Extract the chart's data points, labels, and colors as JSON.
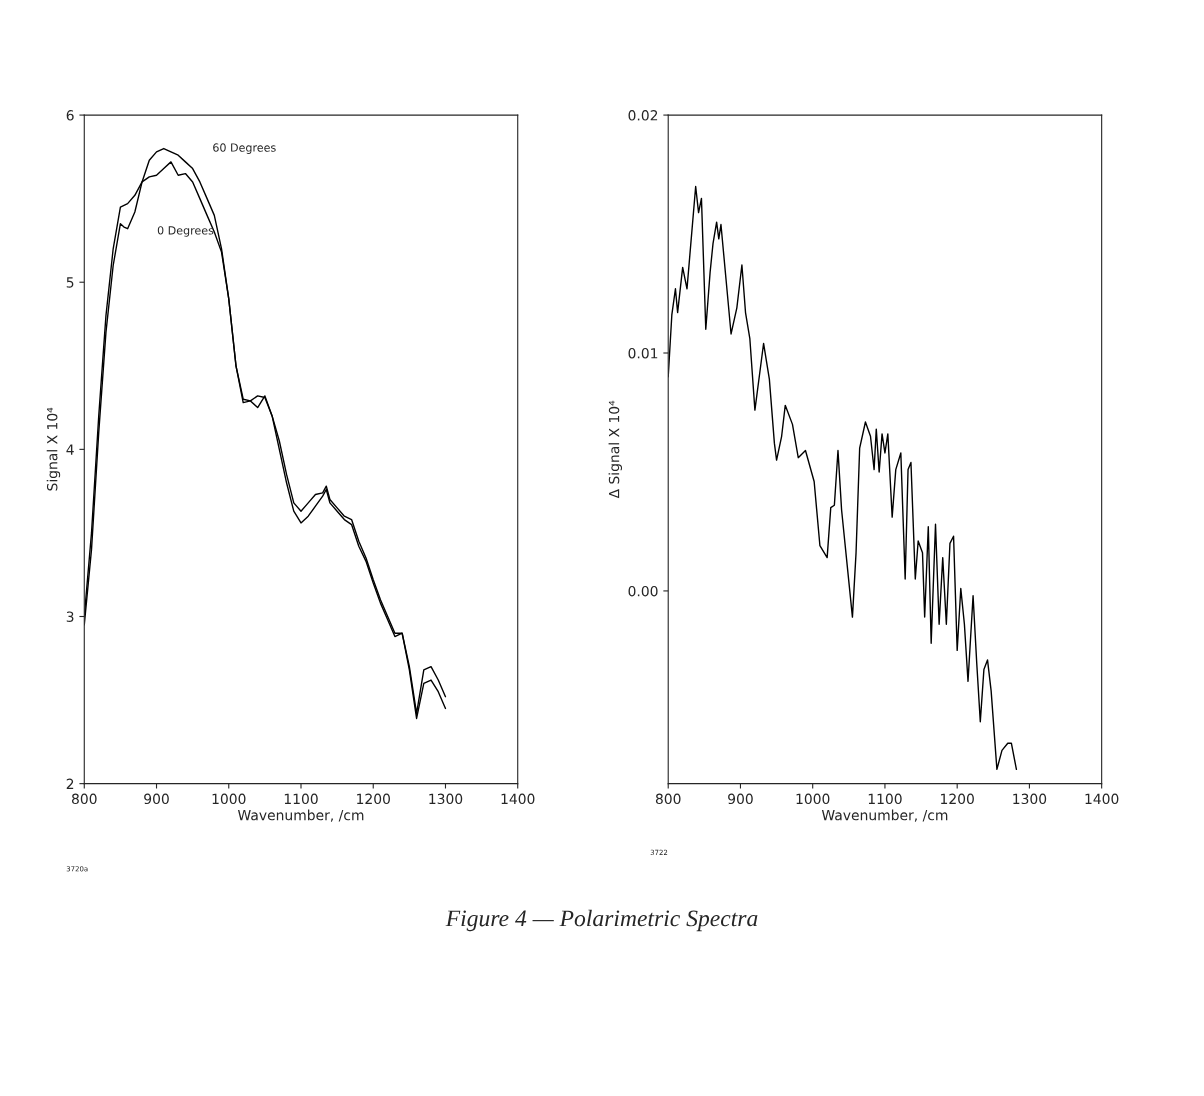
{
  "chart_data": [
    {
      "type": "line",
      "xlabel": "Wavenumber, /cm",
      "ylabel": "Signal X 10⁴",
      "xlim": [
        800,
        1400
      ],
      "ylim": [
        2,
        6
      ],
      "xticks": [
        800,
        900,
        1000,
        1100,
        1200,
        1300,
        1400
      ],
      "yticks": [
        2,
        3,
        4,
        5,
        6
      ],
      "grid": false,
      "legend": false,
      "series": [
        {
          "name": "0 Degrees",
          "color": "#000000",
          "x": [
            800,
            810,
            820,
            830,
            840,
            850,
            855,
            860,
            870,
            880,
            890,
            900,
            910,
            920,
            930,
            940,
            950,
            960,
            970,
            980,
            990,
            1000,
            1010,
            1020,
            1030,
            1040,
            1050,
            1060,
            1070,
            1080,
            1090,
            1100,
            1110,
            1120,
            1130,
            1135,
            1140,
            1150,
            1160,
            1170,
            1180,
            1190,
            1200,
            1210,
            1220,
            1230,
            1240,
            1250,
            1260,
            1270,
            1280,
            1290,
            1300
          ],
          "values": [
            2.95,
            3.4,
            4.1,
            4.7,
            5.1,
            5.35,
            5.33,
            5.32,
            5.42,
            5.6,
            5.63,
            5.64,
            5.68,
            5.72,
            5.64,
            5.65,
            5.6,
            5.5,
            5.4,
            5.3,
            5.18,
            4.9,
            4.5,
            4.28,
            4.29,
            4.25,
            4.32,
            4.2,
            4.0,
            3.8,
            3.63,
            3.56,
            3.6,
            3.66,
            3.72,
            3.76,
            3.68,
            3.63,
            3.58,
            3.55,
            3.42,
            3.33,
            3.2,
            3.08,
            2.98,
            2.88,
            2.9,
            2.68,
            2.39,
            2.6,
            2.62,
            2.55,
            2.45
          ]
        },
        {
          "name": "60 Degrees",
          "color": "#000000",
          "x": [
            800,
            810,
            820,
            830,
            840,
            850,
            860,
            870,
            880,
            890,
            900,
            910,
            920,
            930,
            940,
            950,
            960,
            970,
            980,
            990,
            1000,
            1010,
            1020,
            1030,
            1040,
            1050,
            1060,
            1070,
            1080,
            1090,
            1100,
            1110,
            1120,
            1130,
            1135,
            1140,
            1150,
            1160,
            1170,
            1180,
            1190,
            1200,
            1210,
            1220,
            1230,
            1240,
            1250,
            1260,
            1270,
            1280,
            1290,
            1300
          ],
          "values": [
            3.0,
            3.5,
            4.2,
            4.8,
            5.2,
            5.45,
            5.47,
            5.52,
            5.6,
            5.73,
            5.78,
            5.8,
            5.78,
            5.76,
            5.72,
            5.68,
            5.6,
            5.5,
            5.4,
            5.2,
            4.9,
            4.5,
            4.3,
            4.29,
            4.32,
            4.31,
            4.2,
            4.05,
            3.85,
            3.68,
            3.63,
            3.68,
            3.73,
            3.74,
            3.78,
            3.7,
            3.65,
            3.6,
            3.58,
            3.45,
            3.35,
            3.22,
            3.1,
            3.0,
            2.9,
            2.9,
            2.7,
            2.42,
            2.68,
            2.7,
            2.62,
            2.52
          ]
        }
      ],
      "annotations": [
        "3720a",
        "Figure 4 — Polarimetric Spectra"
      ]
    },
    {
      "type": "line",
      "xlabel": "Wavenumber, /cm",
      "ylabel": "Δ Signal X 10⁴",
      "xlim": [
        800,
        1400
      ],
      "ylim": [
        -0.0081,
        0.02
      ],
      "xticks": [
        800,
        900,
        1000,
        1100,
        1200,
        1300,
        1400
      ],
      "yticks": [
        {
          "value": 0,
          "label": "0.00"
        },
        {
          "value": 0.01,
          "label": "0.01"
        },
        {
          "value": 0.02,
          "label": "0.02"
        }
      ],
      "grid": false,
      "legend": false,
      "series": [
        {
          "color": "#000000",
          "x": [
            800,
            805,
            810,
            813,
            820,
            826,
            838,
            842,
            846,
            852,
            858,
            862,
            867,
            870,
            873,
            880,
            887,
            895,
            902,
            907,
            913,
            920,
            932,
            940,
            947,
            950,
            957,
            962,
            972,
            980,
            990,
            1002,
            1010,
            1020,
            1025,
            1030,
            1035,
            1040,
            1055,
            1060,
            1065,
            1073,
            1080,
            1085,
            1088,
            1092,
            1096,
            1100,
            1104,
            1110,
            1115,
            1122,
            1128,
            1132,
            1136,
            1142,
            1146,
            1152,
            1155,
            1160,
            1164,
            1170,
            1175,
            1180,
            1185,
            1190,
            1195,
            1200,
            1205,
            1210,
            1215,
            1222,
            1227,
            1232,
            1237,
            1242,
            1247,
            1255,
            1262,
            1270,
            1275,
            1282
          ],
          "values": [
            0.009,
            0.0116,
            0.0127,
            0.0117,
            0.0136,
            0.0127,
            0.017,
            0.0159,
            0.0165,
            0.011,
            0.0134,
            0.0146,
            0.0155,
            0.0148,
            0.0154,
            0.0131,
            0.0108,
            0.0119,
            0.0137,
            0.0117,
            0.0106,
            0.0076,
            0.0104,
            0.0089,
            0.0062,
            0.0055,
            0.0065,
            0.0078,
            0.007,
            0.0056,
            0.0059,
            0.0046,
            0.0019,
            0.0014,
            0.0035,
            0.0036,
            0.0059,
            0.0034,
            -0.0011,
            0.0016,
            0.006,
            0.0071,
            0.0065,
            0.0051,
            0.0068,
            0.005,
            0.0066,
            0.0058,
            0.0066,
            0.0031,
            0.0051,
            0.0058,
            0.0005,
            0.0051,
            0.0054,
            0.0005,
            0.0021,
            0.0016,
            -0.0011,
            0.0027,
            -0.0022,
            0.0028,
            -0.0014,
            0.0014,
            -0.0014,
            0.002,
            0.0023,
            -0.0025,
            0.0001,
            -0.0014,
            -0.0038,
            -0.0002,
            -0.003,
            -0.0055,
            -0.0033,
            -0.0029,
            -0.0042,
            -0.0075,
            -0.0067,
            -0.0064,
            -0.0064,
            -0.0075
          ]
        }
      ],
      "annotations": [
        "3722"
      ]
    }
  ]
}
